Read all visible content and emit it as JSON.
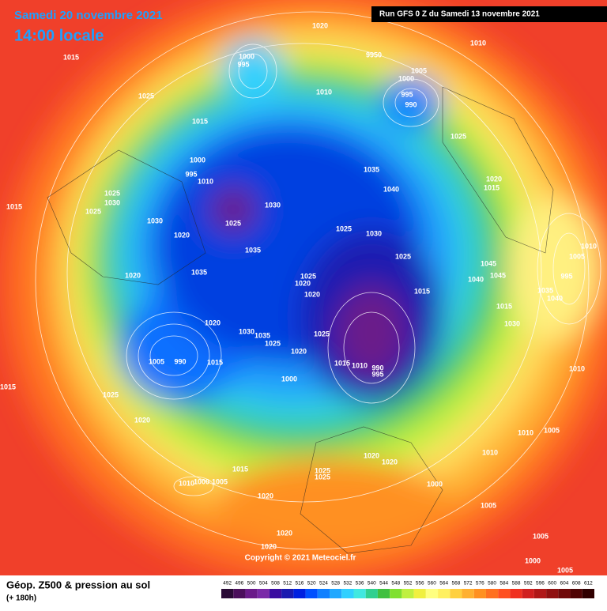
{
  "header": {
    "date": "Samedi 20 novembre 2021",
    "time": "14:00 locale",
    "run": "Run GFS 0 Z du Samedi 13 novembre 2021"
  },
  "footer": {
    "title": "Géop. Z500 & pression au sol",
    "lead": "(+ 180h)",
    "copyright": "Copyright © 2021 Meteociel.fr"
  },
  "scale": {
    "labels": [
      492,
      496,
      500,
      504,
      508,
      512,
      516,
      520,
      524,
      528,
      532,
      536,
      540,
      544,
      548,
      552,
      556,
      560,
      564,
      568,
      572,
      576,
      580,
      584,
      588,
      592,
      596,
      600,
      604,
      608,
      612
    ],
    "colors": [
      "#2a0a36",
      "#4b0f5c",
      "#6a1b8a",
      "#7a2aa8",
      "#3a0ca0",
      "#1a1ab0",
      "#0020e0",
      "#0050ff",
      "#1080ff",
      "#20a8ff",
      "#30d0ff",
      "#40e8e0",
      "#30d090",
      "#40c040",
      "#80e030",
      "#c0f040",
      "#f0f040",
      "#ffff80",
      "#fff060",
      "#ffd040",
      "#ffb030",
      "#ff9020",
      "#ff7020",
      "#ff5020",
      "#f03020",
      "#d02020",
      "#b01818",
      "#901010",
      "#700808",
      "#500404",
      "#300000"
    ]
  },
  "isobar_labels": [
    "1020",
    "1015",
    "1025",
    "9950",
    "1005",
    "1000",
    "995",
    "990",
    "1010",
    "1000",
    "995",
    "1010",
    "1015",
    "1025",
    "1000",
    "995",
    "1010",
    "1035",
    "1040",
    "1020",
    "1015",
    "1025",
    "1030",
    "1015",
    "1025",
    "1030",
    "1025",
    "1030",
    "1020",
    "1025",
    "1030",
    "1025",
    "1035",
    "1010",
    "1005",
    "995",
    "1045",
    "1045",
    "1040",
    "1035",
    "1020",
    "1025",
    "1020",
    "1020",
    "1015",
    "1035",
    "1040",
    "1015",
    "1030",
    "1020",
    "1030",
    "1035",
    "1025",
    "1025",
    "1020",
    "1005",
    "990",
    "1015",
    "1015",
    "1010",
    "990",
    "995",
    "1000",
    "1010",
    "1015",
    "1025",
    "1020",
    "1010",
    "1005",
    "1010",
    "1020",
    "1020",
    "1025",
    "1025",
    "1015",
    "1000",
    "1010",
    "1000",
    "1005",
    "1020",
    "1005",
    "1020",
    "1005",
    "1020",
    "1000",
    "1005"
  ]
}
